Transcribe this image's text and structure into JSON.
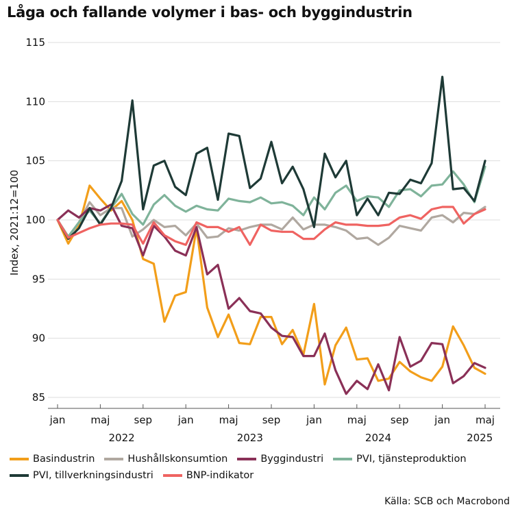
{
  "chart_data": {
    "type": "line",
    "title": "Låga och fallande volymer i bas- och byggindustrin",
    "ylabel": "Index, 2021:12=100",
    "xlabel": "",
    "ylim": [
      85,
      115
    ],
    "yticks": [
      85,
      90,
      95,
      100,
      105,
      110,
      115
    ],
    "grid": true,
    "months_count": 41,
    "month_ticks": [
      {
        "label": "jan",
        "month_index": 0
      },
      {
        "label": "maj",
        "month_index": 4
      },
      {
        "label": "sep",
        "month_index": 8
      },
      {
        "label": "jan",
        "month_index": 12
      },
      {
        "label": "maj",
        "month_index": 16
      },
      {
        "label": "sep",
        "month_index": 20
      },
      {
        "label": "jan",
        "month_index": 24
      },
      {
        "label": "maj",
        "month_index": 28
      },
      {
        "label": "sep",
        "month_index": 32
      },
      {
        "label": "jan",
        "month_index": 36
      },
      {
        "label": "maj",
        "month_index": 40
      }
    ],
    "year_labels": [
      {
        "label": "2022",
        "month_index": 6
      },
      {
        "label": "2023",
        "month_index": 18
      },
      {
        "label": "2024",
        "month_index": 30
      },
      {
        "label": "2025",
        "month_index": 39.5
      }
    ],
    "series": [
      {
        "name": "Basindustrin",
        "color": "#f29e1a",
        "values": [
          100,
          98.0,
          99.5,
          102.9,
          101.8,
          100.8,
          101.6,
          100.0,
          96.7,
          96.3,
          91.4,
          93.6,
          93.9,
          99.3,
          92.6,
          90.1,
          92.0,
          89.6,
          89.5,
          91.8,
          91.8,
          89.5,
          90.7,
          88.6,
          92.9,
          86.1,
          89.4,
          90.9,
          88.2,
          88.3,
          86.4,
          86.6,
          88.0,
          87.2,
          86.7,
          86.4,
          87.6,
          91.0,
          89.4,
          87.5,
          87.0
        ]
      },
      {
        "name": "Hushållskonsumtion",
        "color": "#b0a8a0",
        "values": [
          100,
          98.5,
          99.8,
          101.5,
          100.4,
          101.0,
          101.0,
          98.6,
          99.2,
          100.0,
          99.4,
          99.5,
          98.7,
          99.7,
          98.5,
          98.6,
          99.3,
          99.1,
          99.4,
          99.6,
          99.6,
          99.2,
          100.2,
          99.2,
          99.6,
          99.6,
          99.4,
          99.1,
          98.4,
          98.5,
          97.9,
          98.5,
          99.5,
          99.3,
          99.1,
          100.2,
          100.4,
          99.8,
          100.6,
          100.5,
          101.1
        ]
      },
      {
        "name": "Byggindustri",
        "color": "#8a3057",
        "values": [
          100,
          100.8,
          100.2,
          101.0,
          100.8,
          101.3,
          99.5,
          99.3,
          97.0,
          99.5,
          98.6,
          97.4,
          97.0,
          99.4,
          95.4,
          96.2,
          92.5,
          93.4,
          92.3,
          92.1,
          90.9,
          90.2,
          90.1,
          88.5,
          88.5,
          90.4,
          87.3,
          85.3,
          86.4,
          85.7,
          87.8,
          85.6,
          90.1,
          87.6,
          88.1,
          89.6,
          89.5,
          86.2,
          86.8,
          87.9,
          87.5
        ]
      },
      {
        "name": "PVI, tjänsteproduktion",
        "color": "#7fb39a",
        "values": [
          100,
          98.6,
          99.8,
          100.8,
          99.7,
          101.0,
          102.2,
          100.5,
          99.6,
          101.3,
          102.1,
          101.2,
          100.7,
          101.2,
          100.9,
          100.8,
          101.8,
          101.6,
          101.5,
          101.9,
          101.4,
          101.5,
          101.2,
          100.4,
          101.9,
          100.9,
          102.3,
          102.9,
          101.6,
          102.0,
          101.9,
          101.1,
          102.5,
          102.6,
          102.0,
          102.9,
          103.0,
          104.1,
          103.0,
          101.5,
          104.5
        ]
      },
      {
        "name": "PVI, tillverkningsindustri",
        "color": "#1e3a36",
        "values": [
          100,
          98.4,
          99.3,
          101.0,
          99.6,
          101.0,
          103.3,
          110.1,
          100.9,
          104.6,
          105.0,
          102.8,
          102.1,
          105.6,
          106.1,
          101.7,
          107.3,
          107.1,
          102.7,
          103.5,
          106.6,
          103.1,
          104.5,
          102.6,
          99.4,
          105.6,
          103.6,
          105.0,
          100.4,
          101.8,
          100.4,
          102.3,
          102.2,
          103.4,
          103.1,
          104.8,
          112.1,
          102.6,
          102.7,
          101.6,
          105.0
        ]
      },
      {
        "name": "BNP-indikator",
        "color": "#ef6361",
        "values": [
          100,
          98.5,
          98.9,
          99.3,
          99.6,
          99.7,
          99.7,
          99.6,
          98.0,
          99.8,
          98.7,
          98.2,
          97.9,
          99.8,
          99.4,
          99.4,
          99.0,
          99.4,
          97.9,
          99.6,
          99.1,
          99.0,
          99.0,
          98.4,
          98.4,
          99.2,
          99.8,
          99.6,
          99.6,
          99.5,
          99.5,
          99.6,
          100.2,
          100.4,
          100.1,
          100.9,
          101.1,
          101.1,
          99.7,
          100.5,
          100.9
        ]
      }
    ]
  },
  "legend": {
    "row1": [
      "Basindustrin",
      "Hushållskonsumtion",
      "Byggindustri",
      "PVI, tjänsteproduktion"
    ],
    "row2": [
      "PVI, tillverkningsindustri",
      "BNP-indikator"
    ]
  },
  "source": "Källa: SCB och Macrobond"
}
